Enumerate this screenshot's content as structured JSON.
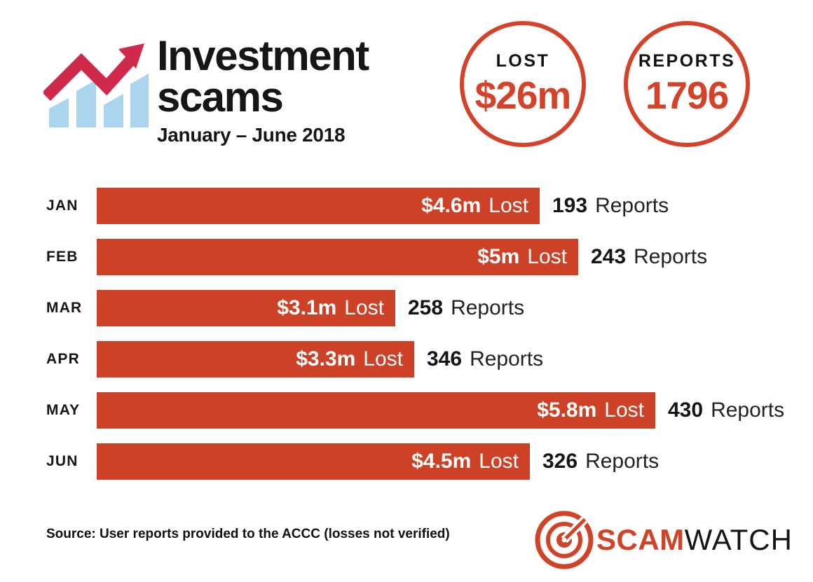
{
  "header": {
    "title_line1": "Investment",
    "title_line2": "scams",
    "subtitle": "January – June 2018"
  },
  "stats": [
    {
      "label": "LOST",
      "value": "$26m"
    },
    {
      "label": "REPORTS",
      "value": "1796"
    }
  ],
  "chart_data": {
    "type": "bar",
    "orientation": "horizontal",
    "title": "Investment scams",
    "subtitle": "January – June 2018",
    "categories": [
      "JAN",
      "FEB",
      "MAR",
      "APR",
      "MAY",
      "JUN"
    ],
    "series": [
      {
        "name": "Lost ($m)",
        "values": [
          4.6,
          5,
          3.1,
          3.3,
          5.8,
          4.5
        ]
      },
      {
        "name": "Reports",
        "values": [
          193,
          243,
          258,
          346,
          430,
          326
        ]
      }
    ],
    "xmax": 5.8,
    "totals": {
      "lost": "$26m",
      "reports": "1796"
    },
    "lost_word": "Lost",
    "reports_word": "Reports",
    "rows": [
      {
        "month": "JAN",
        "lost_m": 4.6,
        "lost_label": "$4.6m",
        "reports": "193"
      },
      {
        "month": "FEB",
        "lost_m": 5.0,
        "lost_label": "$5m",
        "reports": "243"
      },
      {
        "month": "MAR",
        "lost_m": 3.1,
        "lost_label": "$3.1m",
        "reports": "258"
      },
      {
        "month": "APR",
        "lost_m": 3.3,
        "lost_label": "$3.3m",
        "reports": "346"
      },
      {
        "month": "MAY",
        "lost_m": 5.8,
        "lost_label": "$5.8m",
        "reports": "430"
      },
      {
        "month": "JUN",
        "lost_m": 4.5,
        "lost_label": "$4.5m",
        "reports": "326"
      }
    ]
  },
  "footer": {
    "source": "Source: User reports provided to the ACCC (losses not verified)",
    "logo": {
      "part1": "SCAM",
      "part2": "WATCH"
    }
  },
  "icons": {
    "header": "trend-up-bar-chart-icon",
    "logo": "target-bullseye-icon"
  },
  "colors": {
    "bar_red": "#cd4127",
    "circle_red": "#d5422a",
    "logo_red": "#d04327",
    "arrow_crimson": "#d1294b",
    "bars_light_blue": "#abd5ee",
    "text_black": "#161616",
    "background": "#ffffff"
  }
}
